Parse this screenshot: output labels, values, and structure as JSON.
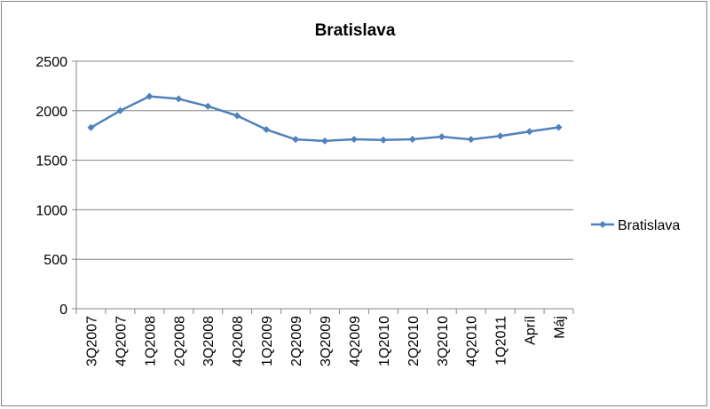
{
  "chart_data": {
    "type": "line",
    "title": "Bratislava",
    "xlabel": "",
    "ylabel": "",
    "categories": [
      "3Q2007",
      "4Q2007",
      "1Q2008",
      "2Q2008",
      "3Q2008",
      "4Q2008",
      "1Q2009",
      "2Q2009",
      "3Q2009",
      "4Q2009",
      "1Q2010",
      "2Q2010",
      "3Q2010",
      "4Q2010",
      "1Q2011",
      "Apríl",
      "Máj"
    ],
    "series": [
      {
        "name": "Bratislava",
        "color": "#4F81BD",
        "values": [
          1830,
          2000,
          2145,
          2120,
          2045,
          1950,
          1810,
          1710,
          1695,
          1712,
          1705,
          1712,
          1737,
          1710,
          1745,
          1790,
          1832
        ]
      }
    ],
    "ylim": [
      0,
      2500
    ],
    "yticks": [
      0,
      500,
      1000,
      1500,
      2000,
      2500
    ],
    "grid": true,
    "legend": "right"
  }
}
